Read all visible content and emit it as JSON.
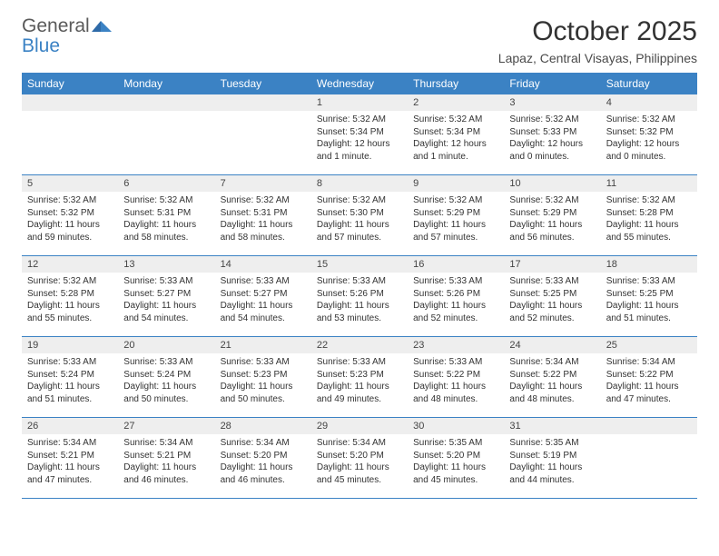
{
  "logo": {
    "word1": "General",
    "word2": "Blue"
  },
  "title": "October 2025",
  "subtitle": "Lapaz, Central Visayas, Philippines",
  "colors": {
    "header_bg": "#3b82c4",
    "header_text": "#ffffff",
    "daynum_bg": "#eeeeee",
    "cell_border": "#3b82c4",
    "text": "#333333",
    "logo_gray": "#5a5a5a",
    "logo_blue": "#3b82c4"
  },
  "dayHeaders": [
    "Sunday",
    "Monday",
    "Tuesday",
    "Wednesday",
    "Thursday",
    "Friday",
    "Saturday"
  ],
  "weeks": [
    [
      null,
      null,
      null,
      {
        "n": "1",
        "sunrise": "5:32 AM",
        "sunset": "5:34 PM",
        "daylight": "12 hours and 1 minute."
      },
      {
        "n": "2",
        "sunrise": "5:32 AM",
        "sunset": "5:34 PM",
        "daylight": "12 hours and 1 minute."
      },
      {
        "n": "3",
        "sunrise": "5:32 AM",
        "sunset": "5:33 PM",
        "daylight": "12 hours and 0 minutes."
      },
      {
        "n": "4",
        "sunrise": "5:32 AM",
        "sunset": "5:32 PM",
        "daylight": "12 hours and 0 minutes."
      }
    ],
    [
      {
        "n": "5",
        "sunrise": "5:32 AM",
        "sunset": "5:32 PM",
        "daylight": "11 hours and 59 minutes."
      },
      {
        "n": "6",
        "sunrise": "5:32 AM",
        "sunset": "5:31 PM",
        "daylight": "11 hours and 58 minutes."
      },
      {
        "n": "7",
        "sunrise": "5:32 AM",
        "sunset": "5:31 PM",
        "daylight": "11 hours and 58 minutes."
      },
      {
        "n": "8",
        "sunrise": "5:32 AM",
        "sunset": "5:30 PM",
        "daylight": "11 hours and 57 minutes."
      },
      {
        "n": "9",
        "sunrise": "5:32 AM",
        "sunset": "5:29 PM",
        "daylight": "11 hours and 57 minutes."
      },
      {
        "n": "10",
        "sunrise": "5:32 AM",
        "sunset": "5:29 PM",
        "daylight": "11 hours and 56 minutes."
      },
      {
        "n": "11",
        "sunrise": "5:32 AM",
        "sunset": "5:28 PM",
        "daylight": "11 hours and 55 minutes."
      }
    ],
    [
      {
        "n": "12",
        "sunrise": "5:32 AM",
        "sunset": "5:28 PM",
        "daylight": "11 hours and 55 minutes."
      },
      {
        "n": "13",
        "sunrise": "5:33 AM",
        "sunset": "5:27 PM",
        "daylight": "11 hours and 54 minutes."
      },
      {
        "n": "14",
        "sunrise": "5:33 AM",
        "sunset": "5:27 PM",
        "daylight": "11 hours and 54 minutes."
      },
      {
        "n": "15",
        "sunrise": "5:33 AM",
        "sunset": "5:26 PM",
        "daylight": "11 hours and 53 minutes."
      },
      {
        "n": "16",
        "sunrise": "5:33 AM",
        "sunset": "5:26 PM",
        "daylight": "11 hours and 52 minutes."
      },
      {
        "n": "17",
        "sunrise": "5:33 AM",
        "sunset": "5:25 PM",
        "daylight": "11 hours and 52 minutes."
      },
      {
        "n": "18",
        "sunrise": "5:33 AM",
        "sunset": "5:25 PM",
        "daylight": "11 hours and 51 minutes."
      }
    ],
    [
      {
        "n": "19",
        "sunrise": "5:33 AM",
        "sunset": "5:24 PM",
        "daylight": "11 hours and 51 minutes."
      },
      {
        "n": "20",
        "sunrise": "5:33 AM",
        "sunset": "5:24 PM",
        "daylight": "11 hours and 50 minutes."
      },
      {
        "n": "21",
        "sunrise": "5:33 AM",
        "sunset": "5:23 PM",
        "daylight": "11 hours and 50 minutes."
      },
      {
        "n": "22",
        "sunrise": "5:33 AM",
        "sunset": "5:23 PM",
        "daylight": "11 hours and 49 minutes."
      },
      {
        "n": "23",
        "sunrise": "5:33 AM",
        "sunset": "5:22 PM",
        "daylight": "11 hours and 48 minutes."
      },
      {
        "n": "24",
        "sunrise": "5:34 AM",
        "sunset": "5:22 PM",
        "daylight": "11 hours and 48 minutes."
      },
      {
        "n": "25",
        "sunrise": "5:34 AM",
        "sunset": "5:22 PM",
        "daylight": "11 hours and 47 minutes."
      }
    ],
    [
      {
        "n": "26",
        "sunrise": "5:34 AM",
        "sunset": "5:21 PM",
        "daylight": "11 hours and 47 minutes."
      },
      {
        "n": "27",
        "sunrise": "5:34 AM",
        "sunset": "5:21 PM",
        "daylight": "11 hours and 46 minutes."
      },
      {
        "n": "28",
        "sunrise": "5:34 AM",
        "sunset": "5:20 PM",
        "daylight": "11 hours and 46 minutes."
      },
      {
        "n": "29",
        "sunrise": "5:34 AM",
        "sunset": "5:20 PM",
        "daylight": "11 hours and 45 minutes."
      },
      {
        "n": "30",
        "sunrise": "5:35 AM",
        "sunset": "5:20 PM",
        "daylight": "11 hours and 45 minutes."
      },
      {
        "n": "31",
        "sunrise": "5:35 AM",
        "sunset": "5:19 PM",
        "daylight": "11 hours and 44 minutes."
      },
      null
    ]
  ],
  "labels": {
    "sunrise": "Sunrise:",
    "sunset": "Sunset:",
    "daylight": "Daylight:"
  }
}
